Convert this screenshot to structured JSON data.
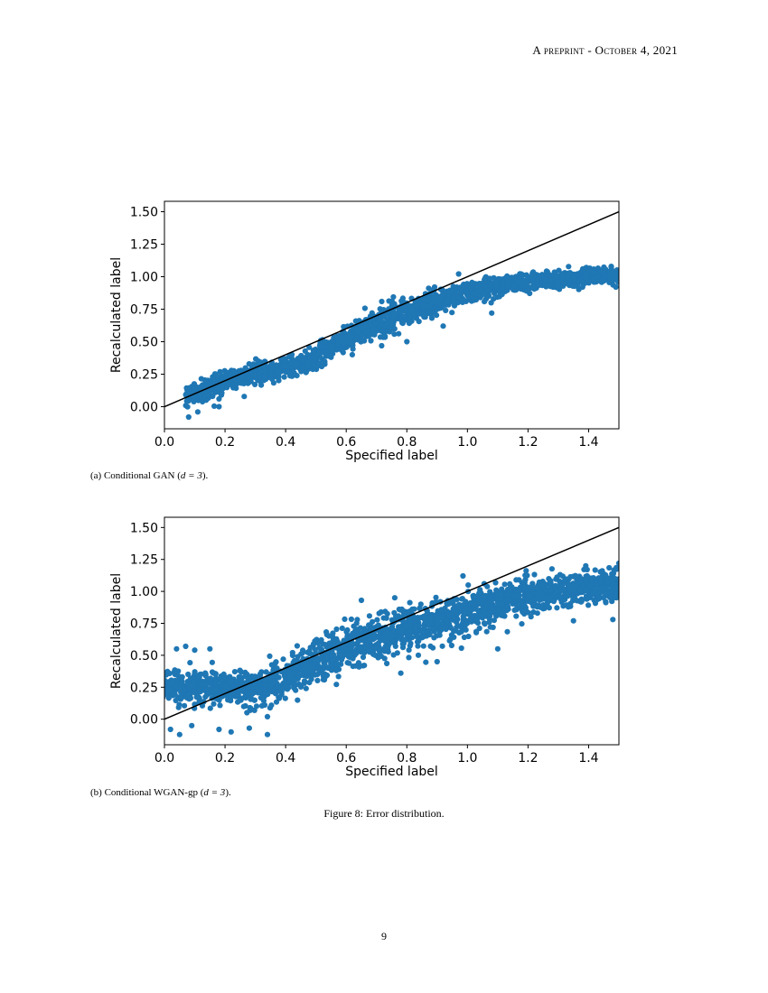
{
  "header": {
    "text": "A preprint - October 4, 2021"
  },
  "captions": {
    "a_prefix": "(a) Conditional GAN (",
    "a_math": "d = 3",
    "a_suffix": ").",
    "b_prefix": "(b) Conditional WGAN-gp (",
    "b_math": "d = 3",
    "b_suffix": ")."
  },
  "figure_caption": "Figure 8: Error distribution.",
  "page_number": "9",
  "chart_data": [
    {
      "type": "scatter",
      "title": "",
      "xlabel": "Specified label",
      "ylabel": "Recalculated label",
      "xlim": [
        0.0,
        1.5
      ],
      "ylim": [
        -0.17,
        1.58
      ],
      "xticks": [
        "0.0",
        "0.2",
        "0.4",
        "0.6",
        "0.8",
        "1.0",
        "1.2",
        "1.4"
      ],
      "yticks": [
        "0.00",
        "0.25",
        "0.50",
        "0.75",
        "1.00",
        "1.25",
        "1.50"
      ],
      "point_color": "#1f77b4",
      "reference_line": {
        "x": [
          0.0,
          1.5
        ],
        "y": [
          0.0,
          1.5
        ],
        "color": "#000000"
      },
      "series": [
        {
          "x": [
            0.08,
            0.1,
            0.12,
            0.14,
            0.16,
            0.18,
            0.2,
            0.22,
            0.24,
            0.26,
            0.28,
            0.3,
            0.32,
            0.34,
            0.36,
            0.38,
            0.4,
            0.42,
            0.44,
            0.46,
            0.48,
            0.5,
            0.52,
            0.54,
            0.56,
            0.58,
            0.6,
            0.62,
            0.64,
            0.66,
            0.68,
            0.7,
            0.72,
            0.74,
            0.76,
            0.78,
            0.8,
            0.82,
            0.84,
            0.86,
            0.88,
            0.9,
            0.92,
            0.94,
            0.96,
            0.98,
            1.0,
            1.02,
            1.04,
            1.06,
            1.08,
            1.1,
            1.12,
            1.14,
            1.16,
            1.18,
            1.2,
            1.22,
            1.24,
            1.26,
            1.28,
            1.3,
            1.32,
            1.34,
            1.36,
            1.38,
            1.4,
            1.42,
            1.44,
            1.46,
            1.48,
            1.5
          ],
          "y": [
            0.1,
            0.12,
            0.1,
            0.14,
            0.16,
            0.18,
            0.2,
            0.22,
            0.22,
            0.24,
            0.25,
            0.26,
            0.27,
            0.28,
            0.28,
            0.29,
            0.3,
            0.31,
            0.32,
            0.33,
            0.35,
            0.38,
            0.42,
            0.46,
            0.48,
            0.51,
            0.53,
            0.55,
            0.57,
            0.6,
            0.62,
            0.64,
            0.66,
            0.67,
            0.69,
            0.71,
            0.72,
            0.74,
            0.76,
            0.77,
            0.79,
            0.81,
            0.82,
            0.84,
            0.85,
            0.87,
            0.88,
            0.89,
            0.9,
            0.91,
            0.92,
            0.93,
            0.94,
            0.95,
            0.95,
            0.96,
            0.96,
            0.97,
            0.97,
            0.98,
            0.98,
            0.98,
            0.99,
            0.99,
            0.99,
            1.0,
            1.0,
            1.0,
            1.0,
            1.01,
            1.01,
            1.01
          ],
          "spread": [
            0.06,
            0.07,
            0.07,
            0.07,
            0.07,
            0.07,
            0.07,
            0.07,
            0.07,
            0.07,
            0.07,
            0.07,
            0.07,
            0.07,
            0.07,
            0.07,
            0.07,
            0.07,
            0.07,
            0.07,
            0.07,
            0.08,
            0.08,
            0.08,
            0.08,
            0.08,
            0.08,
            0.08,
            0.08,
            0.09,
            0.09,
            0.09,
            0.09,
            0.09,
            0.09,
            0.09,
            0.09,
            0.09,
            0.09,
            0.09,
            0.09,
            0.09,
            0.08,
            0.08,
            0.08,
            0.08,
            0.08,
            0.08,
            0.08,
            0.07,
            0.07,
            0.07,
            0.07,
            0.06,
            0.06,
            0.06,
            0.06,
            0.06,
            0.05,
            0.05,
            0.05,
            0.05,
            0.05,
            0.05,
            0.05,
            0.05,
            0.05,
            0.05,
            0.05,
            0.05,
            0.05,
            0.04
          ],
          "outliers": [
            [
              0.08,
              -0.08
            ],
            [
              0.11,
              -0.04
            ],
            [
              0.18,
              0.0
            ],
            [
              0.18,
              0.06
            ],
            [
              0.55,
              0.38
            ],
            [
              0.62,
              0.4
            ],
            [
              0.8,
              0.5
            ],
            [
              0.92,
              0.62
            ],
            [
              1.08,
              0.72
            ],
            [
              1.38,
              0.92
            ],
            [
              1.49,
              0.92
            ]
          ]
        }
      ]
    },
    {
      "type": "scatter",
      "title": "",
      "xlabel": "Specified label",
      "ylabel": "Recalculated label",
      "xlim": [
        0.0,
        1.5
      ],
      "ylim": [
        -0.2,
        1.58
      ],
      "xticks": [
        "0.0",
        "0.2",
        "0.4",
        "0.6",
        "0.8",
        "1.0",
        "1.2",
        "1.4"
      ],
      "yticks": [
        "0.00",
        "0.25",
        "0.50",
        "0.75",
        "1.00",
        "1.25",
        "1.50"
      ],
      "point_color": "#1f77b4",
      "reference_line": {
        "x": [
          0.0,
          1.5
        ],
        "y": [
          0.0,
          1.5
        ],
        "color": "#000000"
      },
      "series": [
        {
          "x": [
            0.0,
            0.02,
            0.04,
            0.06,
            0.08,
            0.1,
            0.12,
            0.14,
            0.16,
            0.18,
            0.2,
            0.22,
            0.24,
            0.26,
            0.28,
            0.3,
            0.32,
            0.34,
            0.36,
            0.38,
            0.4,
            0.42,
            0.44,
            0.46,
            0.48,
            0.5,
            0.52,
            0.54,
            0.56,
            0.58,
            0.6,
            0.62,
            0.64,
            0.66,
            0.68,
            0.7,
            0.72,
            0.74,
            0.76,
            0.78,
            0.8,
            0.82,
            0.84,
            0.86,
            0.88,
            0.9,
            0.92,
            0.94,
            0.96,
            0.98,
            1.0,
            1.02,
            1.04,
            1.06,
            1.08,
            1.1,
            1.12,
            1.14,
            1.16,
            1.18,
            1.2,
            1.22,
            1.24,
            1.26,
            1.28,
            1.3,
            1.32,
            1.34,
            1.36,
            1.38,
            1.4,
            1.42,
            1.44,
            1.46,
            1.48,
            1.5
          ],
          "y": [
            0.26,
            0.25,
            0.24,
            0.24,
            0.24,
            0.24,
            0.24,
            0.24,
            0.24,
            0.24,
            0.24,
            0.24,
            0.24,
            0.24,
            0.24,
            0.24,
            0.25,
            0.26,
            0.27,
            0.29,
            0.31,
            0.34,
            0.37,
            0.4,
            0.43,
            0.46,
            0.48,
            0.5,
            0.52,
            0.54,
            0.56,
            0.58,
            0.59,
            0.6,
            0.62,
            0.63,
            0.64,
            0.66,
            0.67,
            0.69,
            0.7,
            0.71,
            0.72,
            0.74,
            0.75,
            0.76,
            0.77,
            0.79,
            0.8,
            0.81,
            0.83,
            0.84,
            0.85,
            0.87,
            0.88,
            0.89,
            0.91,
            0.92,
            0.93,
            0.94,
            0.95,
            0.96,
            0.97,
            0.98,
            0.99,
            1.0,
            1.01,
            1.01,
            1.02,
            1.02,
            1.03,
            1.03,
            1.04,
            1.04,
            1.05,
            1.06
          ],
          "spread": [
            0.1,
            0.11,
            0.12,
            0.12,
            0.12,
            0.12,
            0.12,
            0.12,
            0.12,
            0.12,
            0.12,
            0.12,
            0.12,
            0.12,
            0.12,
            0.12,
            0.12,
            0.12,
            0.12,
            0.13,
            0.13,
            0.14,
            0.14,
            0.15,
            0.15,
            0.15,
            0.15,
            0.15,
            0.15,
            0.15,
            0.15,
            0.15,
            0.15,
            0.15,
            0.15,
            0.15,
            0.15,
            0.15,
            0.15,
            0.15,
            0.15,
            0.15,
            0.15,
            0.15,
            0.15,
            0.15,
            0.15,
            0.15,
            0.15,
            0.15,
            0.15,
            0.15,
            0.15,
            0.15,
            0.15,
            0.15,
            0.15,
            0.14,
            0.14,
            0.14,
            0.14,
            0.13,
            0.13,
            0.13,
            0.13,
            0.12,
            0.12,
            0.12,
            0.12,
            0.12,
            0.12,
            0.12,
            0.12,
            0.12,
            0.12,
            0.12
          ],
          "outliers": [
            [
              0.04,
              0.55
            ],
            [
              0.07,
              0.57
            ],
            [
              0.1,
              0.54
            ],
            [
              0.15,
              0.55
            ],
            [
              0.02,
              -0.08
            ],
            [
              0.05,
              -0.12
            ],
            [
              0.09,
              -0.05
            ],
            [
              0.18,
              -0.08
            ],
            [
              0.22,
              -0.1
            ],
            [
              0.28,
              -0.07
            ],
            [
              0.34,
              -0.12
            ],
            [
              0.34,
              0.02
            ],
            [
              0.65,
              0.93
            ],
            [
              0.76,
              0.95
            ],
            [
              0.78,
              0.36
            ],
            [
              0.9,
              0.45
            ],
            [
              1.1,
              0.55
            ],
            [
              1.35,
              0.77
            ],
            [
              1.48,
              0.78
            ],
            [
              1.5,
              1.22
            ]
          ]
        }
      ]
    }
  ]
}
